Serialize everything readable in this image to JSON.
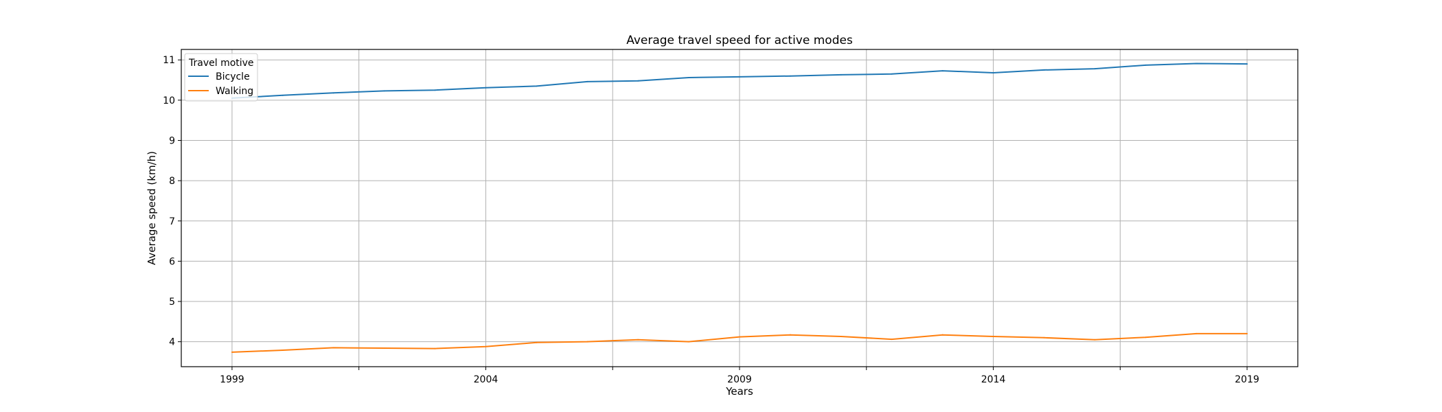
{
  "chart_data": {
    "type": "line",
    "title": "Average travel speed for active modes",
    "xlabel": "Years",
    "ylabel": "Average speed (km/h)",
    "x": [
      1999,
      2000,
      2001,
      2002,
      2003,
      2004,
      2005,
      2006,
      2007,
      2008,
      2009,
      2010,
      2011,
      2012,
      2013,
      2014,
      2015,
      2016,
      2017,
      2018,
      2019
    ],
    "xlim": [
      1998,
      2020
    ],
    "ylim": [
      3.38,
      11.26
    ],
    "x_major_ticks": [
      1999,
      2004,
      2009,
      2014,
      2019
    ],
    "x_gridlines": [
      1999,
      2001.5,
      2004,
      2006.5,
      2009,
      2011.5,
      2014,
      2016.5,
      2019
    ],
    "y_ticks": [
      4,
      5,
      6,
      7,
      8,
      9,
      10,
      11
    ],
    "grid": true,
    "legend": {
      "title": "Travel motive",
      "placement": "top-left"
    },
    "series": [
      {
        "name": "Bicycle",
        "color": "#1f77b4",
        "values": [
          10.05,
          10.12,
          10.18,
          10.23,
          10.25,
          10.31,
          10.35,
          10.46,
          10.48,
          10.56,
          10.58,
          10.6,
          10.63,
          10.65,
          10.73,
          10.68,
          10.75,
          10.78,
          10.87,
          10.91,
          10.9
        ]
      },
      {
        "name": "Walking",
        "color": "#ff7f0e",
        "values": [
          3.74,
          3.79,
          3.85,
          3.84,
          3.83,
          3.88,
          3.98,
          4.0,
          4.05,
          4.0,
          4.12,
          4.17,
          4.13,
          4.06,
          4.17,
          4.13,
          4.1,
          4.05,
          4.11,
          4.2,
          4.2
        ]
      }
    ]
  }
}
